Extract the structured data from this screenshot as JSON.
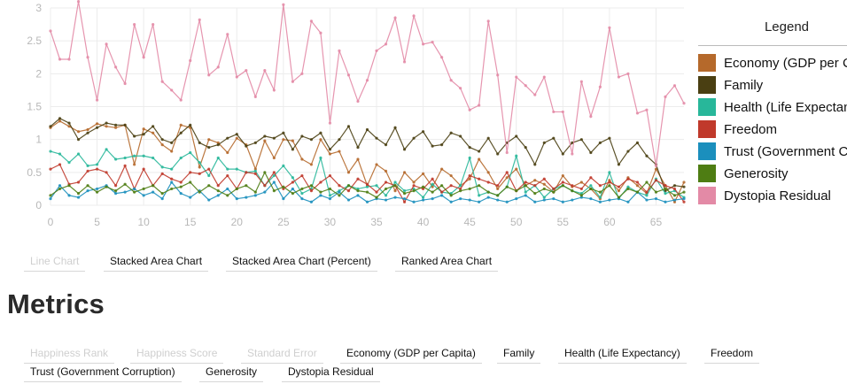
{
  "legend": {
    "title": "Legend",
    "items": [
      {
        "label": "Economy (GDP per Capita)",
        "color": "#b5692b"
      },
      {
        "label": "Family",
        "color": "#4a3f12"
      },
      {
        "label": "Health (Life Expectancy)",
        "color": "#28b79a"
      },
      {
        "label": "Freedom",
        "color": "#c0392b"
      },
      {
        "label": "Trust (Government Corruption)",
        "color": "#1b8fbd"
      },
      {
        "label": "Generosity",
        "color": "#4e7d13"
      },
      {
        "label": "Dystopia Residual",
        "color": "#e38aa6"
      }
    ]
  },
  "chart_types": {
    "items": [
      {
        "label": "Line Chart",
        "active": false
      },
      {
        "label": "Stacked Area Chart",
        "active": true
      },
      {
        "label": "Stacked Area Chart (Percent)",
        "active": true
      },
      {
        "label": "Ranked Area Chart",
        "active": true
      }
    ]
  },
  "metrics": {
    "title": "Metrics",
    "items": [
      {
        "label": "Happiness Rank",
        "active": false
      },
      {
        "label": "Happiness Score",
        "active": false
      },
      {
        "label": "Standard Error",
        "active": false
      },
      {
        "label": "Economy (GDP per Capita)",
        "active": true
      },
      {
        "label": "Family",
        "active": true
      },
      {
        "label": "Health (Life Expectancy)",
        "active": true
      },
      {
        "label": "Freedom",
        "active": true
      },
      {
        "label": "Trust (Government Corruption)",
        "active": true
      },
      {
        "label": "Generosity",
        "active": true
      },
      {
        "label": "Dystopia Residual",
        "active": true
      }
    ]
  },
  "chart_data": {
    "type": "line",
    "title": "",
    "xlabel": "",
    "ylabel": "",
    "xlim": [
      0,
      68
    ],
    "ylim": [
      0,
      3
    ],
    "xticks": [
      0,
      5,
      10,
      15,
      20,
      25,
      30,
      35,
      40,
      45,
      50,
      55,
      60,
      65
    ],
    "yticks": [
      0,
      0.5,
      1,
      1.5,
      2,
      2.5,
      3
    ],
    "ytick_labels": [
      "0",
      "0.5",
      "1",
      "1.5",
      "2",
      "2.5",
      "3"
    ],
    "grid": true,
    "series": [
      {
        "name": "Economy (GDP per Capita)",
        "color": "#b5692b",
        "values": [
          1.18,
          1.28,
          1.2,
          1.12,
          1.15,
          1.24,
          1.2,
          1.18,
          1.22,
          0.62,
          1.16,
          1.1,
          0.92,
          0.82,
          1.22,
          1.18,
          0.58,
          1.0,
          0.95,
          0.8,
          1.02,
          0.92,
          0.55,
          0.98,
          0.72,
          1.0,
          0.98,
          0.7,
          0.62,
          1.0,
          0.78,
          0.82,
          0.5,
          0.7,
          0.3,
          0.62,
          0.52,
          0.22,
          0.5,
          0.35,
          0.48,
          0.28,
          0.55,
          0.45,
          0.3,
          0.4,
          0.7,
          0.5,
          0.25,
          0.42,
          0.55,
          0.3,
          0.38,
          0.32,
          0.2,
          0.45,
          0.28,
          0.35,
          0.25,
          0.1,
          0.38,
          0.22,
          0.42,
          0.3,
          0.18,
          0.55,
          0.3,
          0.05,
          0.35
        ]
      },
      {
        "name": "Family",
        "color": "#4a3f12",
        "values": [
          1.2,
          1.32,
          1.25,
          1.0,
          1.1,
          1.18,
          1.25,
          1.22,
          1.22,
          1.05,
          1.08,
          1.2,
          1.0,
          0.95,
          1.1,
          1.22,
          0.95,
          0.88,
          0.92,
          1.02,
          1.08,
          0.9,
          0.95,
          1.05,
          1.02,
          1.1,
          0.85,
          1.05,
          1.0,
          1.1,
          0.85,
          1.0,
          1.2,
          0.88,
          1.15,
          1.02,
          0.92,
          1.18,
          0.85,
          1.02,
          1.12,
          0.9,
          0.92,
          1.1,
          1.05,
          0.88,
          0.82,
          1.02,
          0.78,
          0.95,
          1.05,
          0.88,
          0.62,
          0.95,
          1.02,
          0.78,
          0.95,
          1.0,
          0.8,
          0.95,
          1.02,
          0.62,
          0.82,
          0.95,
          0.75,
          0.62,
          0.22,
          0.3,
          0.28
        ]
      },
      {
        "name": "Health (Life Expectancy)",
        "color": "#28b79a",
        "values": [
          0.82,
          0.78,
          0.65,
          0.78,
          0.6,
          0.62,
          0.85,
          0.7,
          0.72,
          0.75,
          0.75,
          0.72,
          0.58,
          0.55,
          0.72,
          0.8,
          0.65,
          0.45,
          0.72,
          0.55,
          0.55,
          0.5,
          0.52,
          0.3,
          0.45,
          0.6,
          0.42,
          0.18,
          0.25,
          0.72,
          0.15,
          0.22,
          0.3,
          0.25,
          0.28,
          0.3,
          0.15,
          0.35,
          0.22,
          0.25,
          0.12,
          0.32,
          0.2,
          0.18,
          0.3,
          0.72,
          0.15,
          0.2,
          0.15,
          0.28,
          0.75,
          0.2,
          0.3,
          0.12,
          0.25,
          0.3,
          0.22,
          0.18,
          0.3,
          0.12,
          0.5,
          0.1,
          0.28,
          0.2,
          0.15,
          0.4,
          0.18,
          0.22,
          0.12
        ]
      },
      {
        "name": "Freedom",
        "color": "#c0392b",
        "values": [
          0.55,
          0.62,
          0.32,
          0.35,
          0.52,
          0.55,
          0.5,
          0.3,
          0.6,
          0.25,
          0.55,
          0.3,
          0.48,
          0.4,
          0.35,
          0.5,
          0.48,
          0.55,
          0.3,
          0.45,
          0.25,
          0.5,
          0.48,
          0.3,
          0.5,
          0.25,
          0.35,
          0.45,
          0.22,
          0.35,
          0.45,
          0.3,
          0.22,
          0.4,
          0.32,
          0.2,
          0.35,
          0.3,
          0.05,
          0.3,
          0.25,
          0.4,
          0.2,
          0.3,
          0.25,
          0.45,
          0.4,
          0.35,
          0.3,
          0.5,
          0.22,
          0.35,
          0.3,
          0.4,
          0.25,
          0.35,
          0.3,
          0.25,
          0.42,
          0.3,
          0.35,
          0.28,
          0.4,
          0.35,
          0.2,
          0.38,
          0.3,
          0.25,
          0.05
        ]
      },
      {
        "name": "Trust (Government Corruption)",
        "color": "#1b8fbd",
        "values": [
          0.1,
          0.3,
          0.15,
          0.12,
          0.22,
          0.25,
          0.3,
          0.18,
          0.2,
          0.25,
          0.15,
          0.2,
          0.1,
          0.35,
          0.18,
          0.12,
          0.22,
          0.08,
          0.15,
          0.25,
          0.1,
          0.12,
          0.15,
          0.2,
          0.35,
          0.1,
          0.25,
          0.1,
          0.05,
          0.15,
          0.1,
          0.2,
          0.08,
          0.15,
          0.05,
          0.1,
          0.08,
          0.12,
          0.1,
          0.05,
          0.08,
          0.1,
          0.15,
          0.05,
          0.1,
          0.08,
          0.05,
          0.12,
          0.08,
          0.05,
          0.1,
          0.15,
          0.05,
          0.08,
          0.1,
          0.05,
          0.08,
          0.12,
          0.1,
          0.05,
          0.08,
          0.1,
          0.05,
          0.2,
          0.08,
          0.1,
          0.05,
          0.08,
          0.1
        ]
      },
      {
        "name": "Generosity",
        "color": "#4e7d13",
        "values": [
          0.15,
          0.25,
          0.3,
          0.18,
          0.3,
          0.2,
          0.28,
          0.22,
          0.32,
          0.2,
          0.25,
          0.3,
          0.18,
          0.25,
          0.28,
          0.35,
          0.2,
          0.3,
          0.22,
          0.15,
          0.25,
          0.3,
          0.2,
          0.5,
          0.22,
          0.28,
          0.18,
          0.25,
          0.3,
          0.2,
          0.25,
          0.15,
          0.3,
          0.22,
          0.2,
          0.12,
          0.25,
          0.3,
          0.18,
          0.22,
          0.28,
          0.2,
          0.3,
          0.15,
          0.22,
          0.25,
          0.3,
          0.2,
          0.15,
          0.28,
          0.22,
          0.3,
          0.18,
          0.25,
          0.2,
          0.3,
          0.22,
          0.15,
          0.25,
          0.2,
          0.3,
          0.12,
          0.25,
          0.2,
          0.35,
          0.2,
          0.25,
          0.15,
          0.2
        ]
      },
      {
        "name": "Dystopia Residual",
        "color": "#e38aa6",
        "values": [
          2.65,
          2.22,
          2.22,
          3.1,
          2.25,
          1.6,
          2.45,
          2.1,
          1.85,
          2.75,
          2.25,
          2.75,
          1.88,
          1.75,
          1.6,
          2.2,
          2.82,
          1.98,
          2.1,
          2.6,
          1.95,
          2.05,
          1.65,
          2.05,
          1.75,
          3.05,
          1.88,
          2.0,
          2.8,
          2.62,
          1.25,
          2.35,
          1.98,
          1.58,
          1.9,
          2.35,
          2.45,
          2.85,
          2.18,
          2.88,
          2.45,
          2.48,
          2.25,
          1.9,
          1.78,
          1.45,
          1.52,
          2.8,
          1.98,
          0.8,
          1.95,
          1.82,
          1.68,
          1.95,
          1.42,
          1.42,
          0.78,
          1.88,
          1.35,
          1.8,
          2.7,
          1.95,
          2.0,
          1.4,
          1.45,
          0.6,
          1.65,
          1.82,
          1.55
        ]
      }
    ]
  }
}
